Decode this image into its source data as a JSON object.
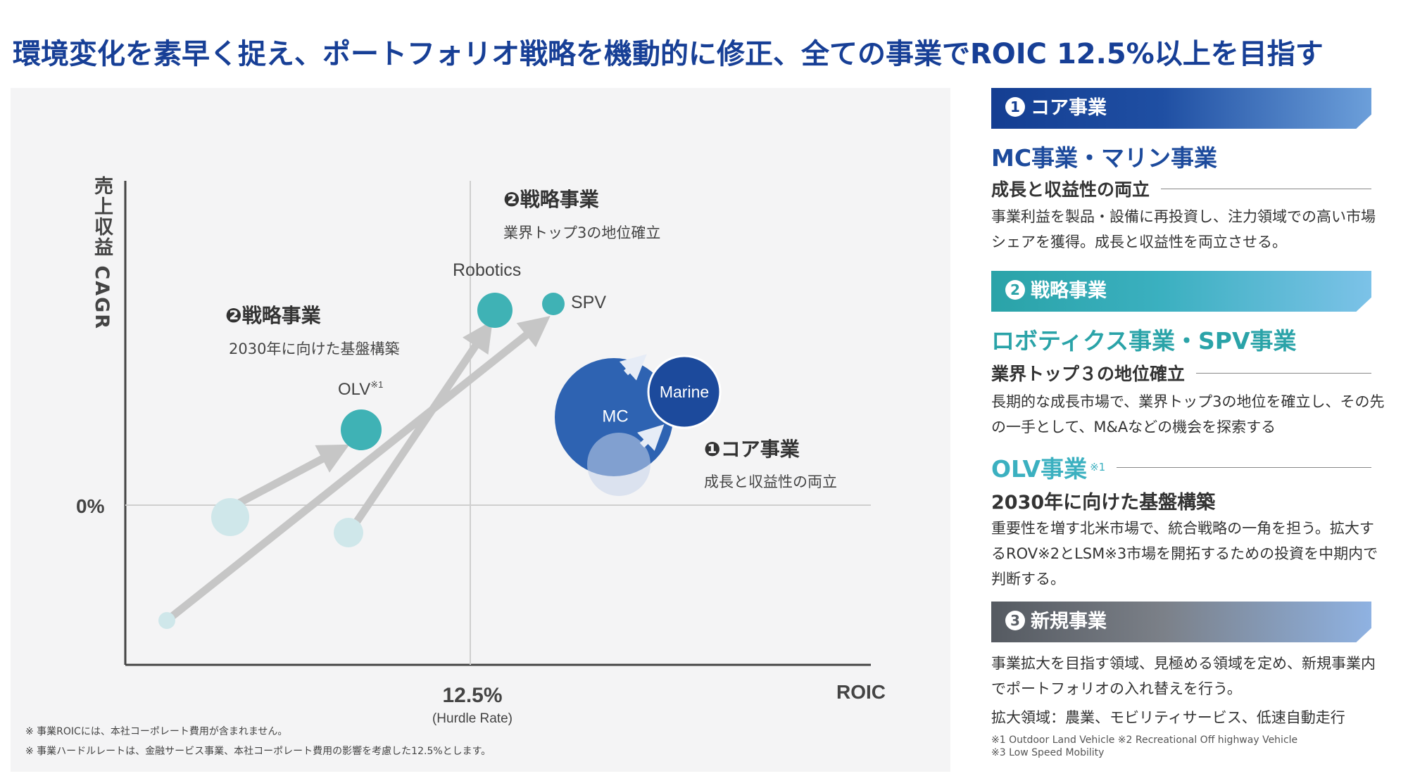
{
  "title": "環境変化を素早く捉え、ポートフォリオ戦略を機動的に修正、全ての事業でROIC 12.5%以上を目指す",
  "chart": {
    "ylabel": "売上収益 CAGR",
    "xlabel": "ROIC",
    "zero_label": "0%",
    "hurdle_label": "12.5%",
    "hurdle_sub": "(Hurdle Rate)",
    "quadrant_top": {
      "title": "❷戦略事業",
      "sub": "業界トップ3の地位確立"
    },
    "quadrant_left": {
      "title": "❷戦略事業",
      "sub": "2030年に向けた基盤構築"
    },
    "quadrant_right": {
      "title": "❶コア事業",
      "sub": "成長と収益性の両立"
    },
    "bubbles": {
      "robotics": "Robotics",
      "spv": "SPV",
      "olv": "OLV",
      "olv_note": "※1",
      "mc": "MC",
      "marine": "Marine"
    },
    "colors": {
      "core_dark": "#1c4a9c",
      "core_mid": "#2e63b2",
      "strategic": "#3fb2b5",
      "faded": "#cfe7ea",
      "arrow": "#cccccc"
    }
  },
  "footnotes": [
    "※ 事業ROICには、本社コーポレート費用が含まれません。",
    "※ 事業ハードルレートは、金融サービス事業、本社コーポレート費用の影響を考慮した12.5%とします。"
  ],
  "panel": {
    "core": {
      "band_num": "1",
      "band_label": "コア事業",
      "name": "MC事業・マリン事業",
      "tagline": "成長と収益性の両立",
      "body": "事業利益を製品・設備に再投資し、注力領域での高い市場シェアを獲得。成長と収益性を両立させる。"
    },
    "strategic": {
      "band_num": "2",
      "band_label": "戦略事業",
      "name": "ロボティクス事業・SPV事業",
      "tagline": "業界トップ３の地位確立",
      "body": "長期的な成長市場で、業界トップ3の地位を確立し、その先の一手として、M&Aなどの機会を探索する",
      "olv_name": "OLV事業",
      "olv_note": "※1",
      "olv_tagline": "2030年に向けた基盤構築",
      "olv_body": "重要性を増す北米市場で、統合戦略の一角を担う。拡大するROV※2とLSM※3市場を開拓するための投資を中期内で判断する。"
    },
    "new": {
      "band_num": "3",
      "band_label": "新規事業",
      "body": "事業拡大を目指す領域、見極める領域を定め、新規事業内でポートフォリオの入れ替えを行う。",
      "fields": "拡大領域：農業、モビリティサービス、低速自動走行"
    },
    "notes": "※1 Outdoor Land Vehicle  ※2 Recreational Off highway Vehicle\n※3 Low Speed Mobility"
  }
}
